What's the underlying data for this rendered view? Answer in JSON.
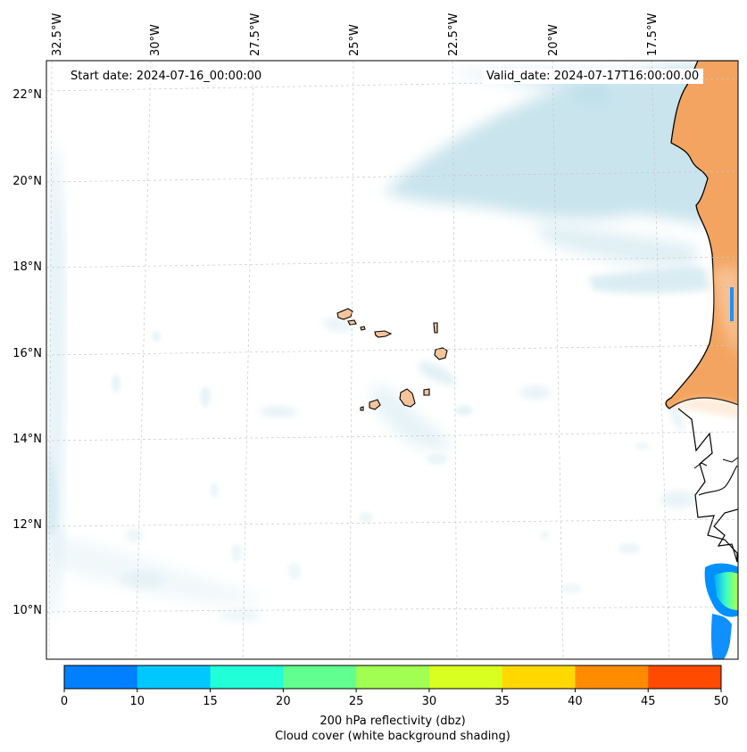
{
  "header": {
    "start_date": "Start date: 2024-07-16_00:00:00",
    "valid_date": "Valid_date: 2024-07-17T16:00:00.00"
  },
  "longitude_labels": [
    "32.5°W",
    "30°W",
    "27.5°W",
    "25°W",
    "22.5°W",
    "20°W",
    "17.5°W"
  ],
  "latitude_labels": [
    "22°N",
    "20°N",
    "18°N",
    "16°N",
    "14°N",
    "12°N",
    "10°N"
  ],
  "colorbar": {
    "title": "200 hPa reflectivity (dbz)",
    "subtitle": "Cloud cover (white background shading)",
    "ticks": [
      "0",
      "10",
      "15",
      "20",
      "25",
      "30",
      "35",
      "40",
      "45",
      "50"
    ],
    "colors": [
      "#0080ff",
      "#00c8ff",
      "#20ffd8",
      "#60ff90",
      "#a0ff50",
      "#d8ff20",
      "#ffd800",
      "#ff8c00",
      "#ff4a00"
    ]
  },
  "colors": {
    "cloud": "#b7dbe7",
    "land_desert": "#f3a460",
    "island_fill": "#f6c49a",
    "coastline": "#000000",
    "gridline": "#c8c8c8"
  }
}
